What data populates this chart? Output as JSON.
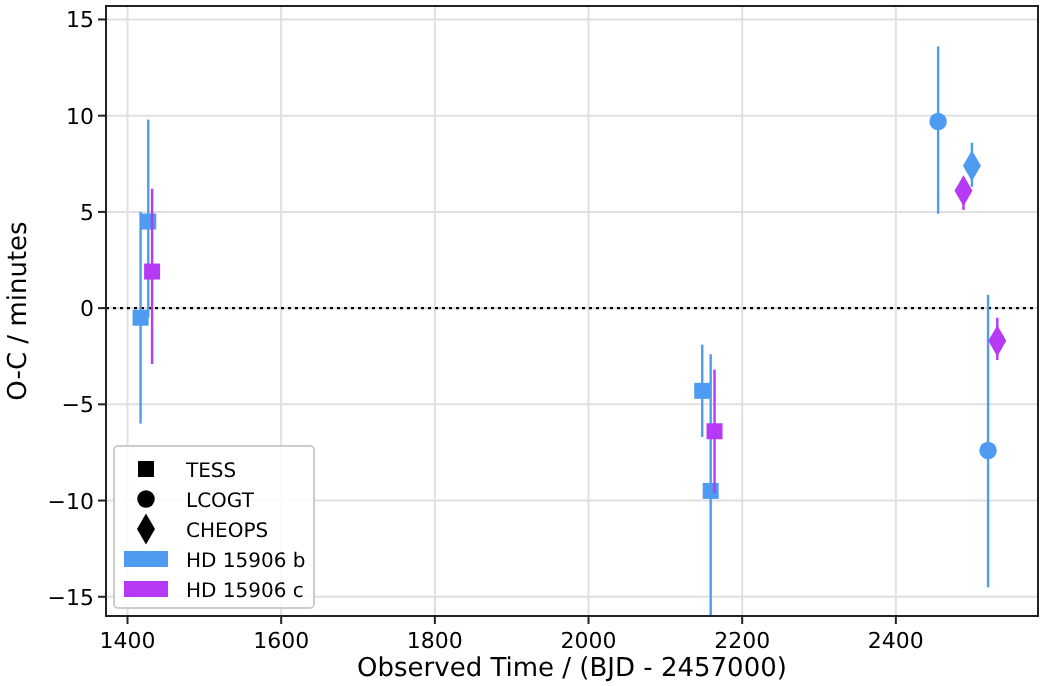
{
  "chart_data": {
    "type": "scatter",
    "xlabel": "Observed Time / (BJD - 2457000)",
    "ylabel": "O-C / minutes",
    "xlim": [
      1372,
      2585
    ],
    "ylim": [
      -16,
      15.7
    ],
    "xticks": [
      1400,
      1600,
      1800,
      2000,
      2200,
      2400
    ],
    "yticks": [
      {
        "value": -15,
        "label": "−15"
      },
      {
        "value": -10,
        "label": "−10"
      },
      {
        "value": -5,
        "label": "−5"
      },
      0,
      5,
      10,
      15
    ],
    "grid": true,
    "legend": "bottom left",
    "ref_lines": [
      {
        "axis": "y",
        "value": 0,
        "color": "#000000",
        "line_style": "dotted"
      }
    ],
    "series": [
      {
        "name": "TESS",
        "color": "#000000",
        "marker": "square"
      },
      {
        "name": "LCOGT",
        "color": "#000000",
        "marker": "circle"
      },
      {
        "name": "CHEOPS",
        "color": "#000000",
        "marker": "diamond"
      },
      {
        "name": "HD 15906 b",
        "color": "#4f9bf2",
        "marker": "square",
        "x": [
          1417,
          1427,
          2148,
          2159
        ],
        "values": [
          -0.5,
          4.5,
          -4.3,
          -9.5
        ],
        "errors": [
          [
            -6.0,
            5.0
          ],
          [
            -0.5,
            9.8
          ],
          [
            -6.7,
            -1.9
          ],
          [
            -16,
            -2.4
          ]
        ]
      },
      {
        "name": "HD 15906 c",
        "color": "#b63af5",
        "marker": "square",
        "x": [
          1432,
          2164
        ],
        "values": [
          1.9,
          -6.4
        ],
        "errors": [
          [
            -2.9,
            6.2
          ],
          [
            -9.6,
            -3.2
          ]
        ]
      },
      {
        "color": "#4f9bf2",
        "marker": "circle",
        "x": [
          2455,
          2520
        ],
        "values": [
          9.7,
          -7.4
        ],
        "errors": [
          [
            4.9,
            13.6
          ],
          [
            -14.5,
            0.7
          ]
        ]
      },
      {
        "color": "#4f9bf2",
        "marker": "diamond",
        "x": [
          2499
        ],
        "values": [
          7.4
        ],
        "errors": [
          [
            6.3,
            8.6
          ]
        ]
      },
      {
        "color": "#b63af5",
        "marker": "diamond",
        "x": [
          2488,
          2532
        ],
        "values": [
          6.1,
          -1.7
        ],
        "errors": [
          [
            5.1,
            6.8
          ],
          [
            -2.7,
            -0.5
          ]
        ]
      }
    ]
  }
}
